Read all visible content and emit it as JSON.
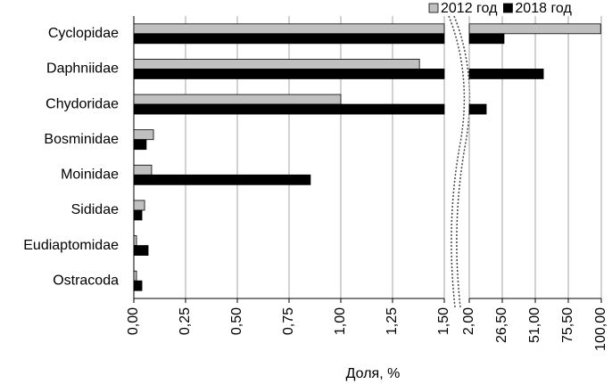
{
  "chart_data": {
    "type": "broken-hbar",
    "x_label": "Доля, %",
    "categories": [
      "Cyclopidae",
      "Daphniidae",
      "Chydoridae",
      "Bosminidae",
      "Moinidae",
      "Sididae",
      "Eudiaptomidae",
      "Ostracoda"
    ],
    "series": [
      {
        "name": "2012 год",
        "color": "#c0c0c0",
        "values": [
          99.5,
          1.38,
          1.0,
          0.095,
          0.086,
          0.052,
          0.013,
          0.013
        ]
      },
      {
        "name": "2018 год",
        "color": "#000000",
        "values": [
          27.8,
          57,
          14.6,
          0.06,
          0.853,
          0.039,
          0.069,
          0.039
        ]
      }
    ],
    "xlim": [
      0,
      1.5
    ],
    "xticks": [
      {
        "value": 0,
        "label": "0,00"
      },
      {
        "value": 0.25,
        "label": "0,25"
      },
      {
        "value": 0.5,
        "label": "0,50"
      },
      {
        "value": 0.75,
        "label": "0,75"
      },
      {
        "value": 1,
        "label": "1,00"
      },
      {
        "value": 1.25,
        "label": "1,25"
      },
      {
        "value": 1.5,
        "label": "1,50"
      }
    ],
    "x2lim": [
      2,
      100
    ],
    "x2ticks": [
      {
        "value": 2,
        "label": "2,00"
      },
      {
        "value": 26.5,
        "label": "26,50"
      },
      {
        "value": 51,
        "label": "51,00"
      },
      {
        "value": 75.5,
        "label": "75,50"
      },
      {
        "value": 100,
        "label": "100,00"
      }
    ],
    "grid": true,
    "legend": "top-right"
  }
}
